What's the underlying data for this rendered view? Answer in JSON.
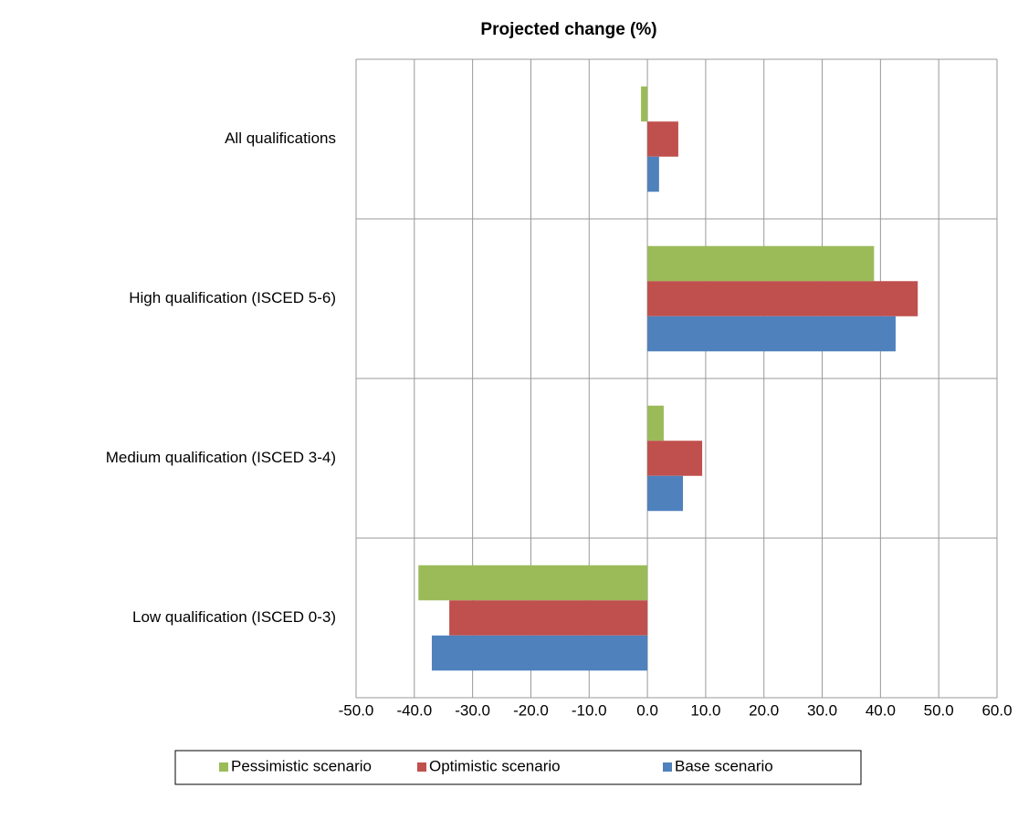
{
  "chart_data": {
    "type": "hbar",
    "title": "Projected change (%)",
    "categories": [
      "All qualifications",
      "High qualification (ISCED 5-6)",
      "Medium qualification (ISCED 3-4)",
      "Low qualification (ISCED 0-3)"
    ],
    "series": [
      {
        "name": "Pessimistic scenario",
        "color": "#9bbb59",
        "values": [
          -1.1,
          38.9,
          2.8,
          -39.3
        ]
      },
      {
        "name": "Optimistic scenario",
        "color": "#c0504d",
        "values": [
          5.3,
          46.4,
          9.4,
          -34.0
        ]
      },
      {
        "name": "Base scenario",
        "color": "#4f81bd",
        "values": [
          2.0,
          42.6,
          6.1,
          -37.0
        ]
      }
    ],
    "xlim": [
      -50,
      60
    ],
    "xticks": [
      {
        "value": -50,
        "label": "-50.0"
      },
      {
        "value": -40,
        "label": "-40.0"
      },
      {
        "value": -30,
        "label": "-30.0"
      },
      {
        "value": -20,
        "label": "-20.0"
      },
      {
        "value": -10,
        "label": "-10.0"
      },
      {
        "value": 0,
        "label": "0.0"
      },
      {
        "value": 10,
        "label": "10.0"
      },
      {
        "value": 20,
        "label": "20.0"
      },
      {
        "value": 30,
        "label": "30.0"
      },
      {
        "value": 40,
        "label": "40.0"
      },
      {
        "value": 50,
        "label": "50.0"
      },
      {
        "value": 60,
        "label": "60.0"
      }
    ],
    "grid": true,
    "legend": "bottom"
  }
}
